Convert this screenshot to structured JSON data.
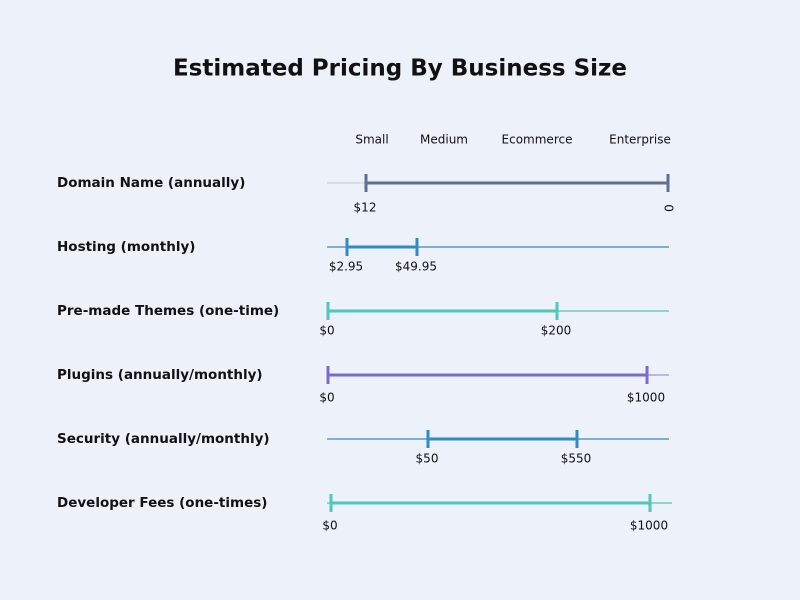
{
  "title": "Estimated Pricing By Business Size",
  "headers": [
    "Small",
    "Medium",
    "Ecommerce",
    "Enterprise"
  ],
  "rows": [
    {
      "label": "Domain Name (annually)",
      "low": "$12",
      "high": "0"
    },
    {
      "label": "Hosting (monthly)",
      "low": "$2.95",
      "high": "$49.95"
    },
    {
      "label": "Pre-made Themes (one-time)",
      "low": "$0",
      "high": "$200"
    },
    {
      "label": "Plugins (annually/monthly)",
      "low": "$0",
      "high": "$1000"
    },
    {
      "label": "Security (annually/monthly)",
      "low": "$50",
      "high": "$550"
    },
    {
      "label": "Developer Fees (one-times)",
      "low": "$0",
      "high": "$1000"
    }
  ]
}
